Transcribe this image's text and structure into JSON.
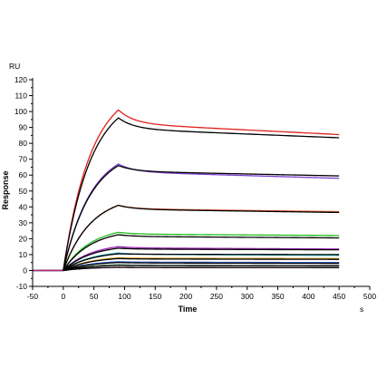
{
  "chart_data": {
    "type": "line",
    "xlabel": "Time",
    "ylabel": "Response",
    "x_unit": "s",
    "y_unit": "RU",
    "xlim": [
      -50,
      500
    ],
    "ylim": [
      -10,
      120
    ],
    "x_ticks": [
      -50,
      0,
      50,
      100,
      150,
      200,
      250,
      300,
      350,
      400,
      450,
      500
    ],
    "y_ticks": [
      -10,
      0,
      10,
      20,
      30,
      40,
      50,
      60,
      70,
      80,
      90,
      100,
      110,
      120
    ],
    "grid": false,
    "injection_start": 0,
    "injection_end": 90,
    "series": [
      {
        "color": "#e0201c",
        "values": [
          [
            -50,
            0
          ],
          [
            0,
            0
          ],
          [
            90,
            101
          ],
          [
            450,
            85.5
          ]
        ],
        "fit": [
          [
            0,
            0
          ],
          [
            90,
            96
          ],
          [
            450,
            83.5
          ]
        ]
      },
      {
        "color": "#7a3fd0",
        "values": [
          [
            -50,
            0
          ],
          [
            0,
            0
          ],
          [
            90,
            67
          ],
          [
            450,
            58
          ]
        ],
        "fit": [
          [
            0,
            0
          ],
          [
            90,
            66
          ],
          [
            450,
            59.5
          ]
        ]
      },
      {
        "color": "#e05a2a",
        "values": [
          [
            -50,
            0
          ],
          [
            0,
            0
          ],
          [
            90,
            41
          ],
          [
            450,
            37
          ]
        ],
        "fit": [
          [
            0,
            0
          ],
          [
            90,
            41
          ],
          [
            450,
            36.5
          ]
        ]
      },
      {
        "color": "#1fbf1f",
        "values": [
          [
            -50,
            0
          ],
          [
            0,
            0
          ],
          [
            90,
            24
          ],
          [
            450,
            22
          ]
        ],
        "fit": [
          [
            0,
            0
          ],
          [
            90,
            22.5
          ],
          [
            450,
            20.5
          ]
        ]
      },
      {
        "color": "#9b1fb4",
        "values": [
          [
            -50,
            0
          ],
          [
            0,
            0
          ],
          [
            90,
            15
          ],
          [
            450,
            13.5
          ]
        ],
        "fit": [
          [
            0,
            0
          ],
          [
            90,
            14
          ],
          [
            450,
            13
          ]
        ]
      },
      {
        "color": "#2fb7c4",
        "values": [
          [
            -50,
            0
          ],
          [
            0,
            0
          ],
          [
            90,
            11
          ],
          [
            450,
            9.5
          ]
        ],
        "fit": [
          [
            0,
            0
          ],
          [
            90,
            10.5
          ],
          [
            450,
            10
          ]
        ]
      },
      {
        "color": "#e0a020",
        "values": [
          [
            -50,
            0
          ],
          [
            0,
            0
          ],
          [
            90,
            8
          ],
          [
            450,
            7.5
          ]
        ],
        "fit": [
          [
            0,
            0
          ],
          [
            90,
            7.5
          ],
          [
            450,
            7
          ]
        ]
      },
      {
        "color": "#3060d8",
        "values": [
          [
            -50,
            0
          ],
          [
            0,
            0
          ],
          [
            90,
            5.5
          ],
          [
            450,
            5
          ]
        ],
        "fit": [
          [
            0,
            0
          ],
          [
            90,
            5
          ],
          [
            450,
            4.5
          ]
        ]
      },
      {
        "color": "#1f8a3a",
        "values": [
          [
            -50,
            0
          ],
          [
            0,
            0
          ],
          [
            90,
            3.5
          ],
          [
            450,
            3
          ]
        ],
        "fit": [
          [
            0,
            0
          ],
          [
            90,
            3.3
          ],
          [
            450,
            3
          ]
        ]
      },
      {
        "color": "#c01f7a",
        "values": [
          [
            -50,
            0
          ],
          [
            0,
            0
          ],
          [
            90,
            2
          ],
          [
            450,
            1.8
          ]
        ],
        "fit": [
          [
            0,
            0
          ],
          [
            90,
            2
          ],
          [
            450,
            1.8
          ]
        ]
      }
    ]
  },
  "colors": {
    "axis": "#000000",
    "fit": "#000000"
  }
}
